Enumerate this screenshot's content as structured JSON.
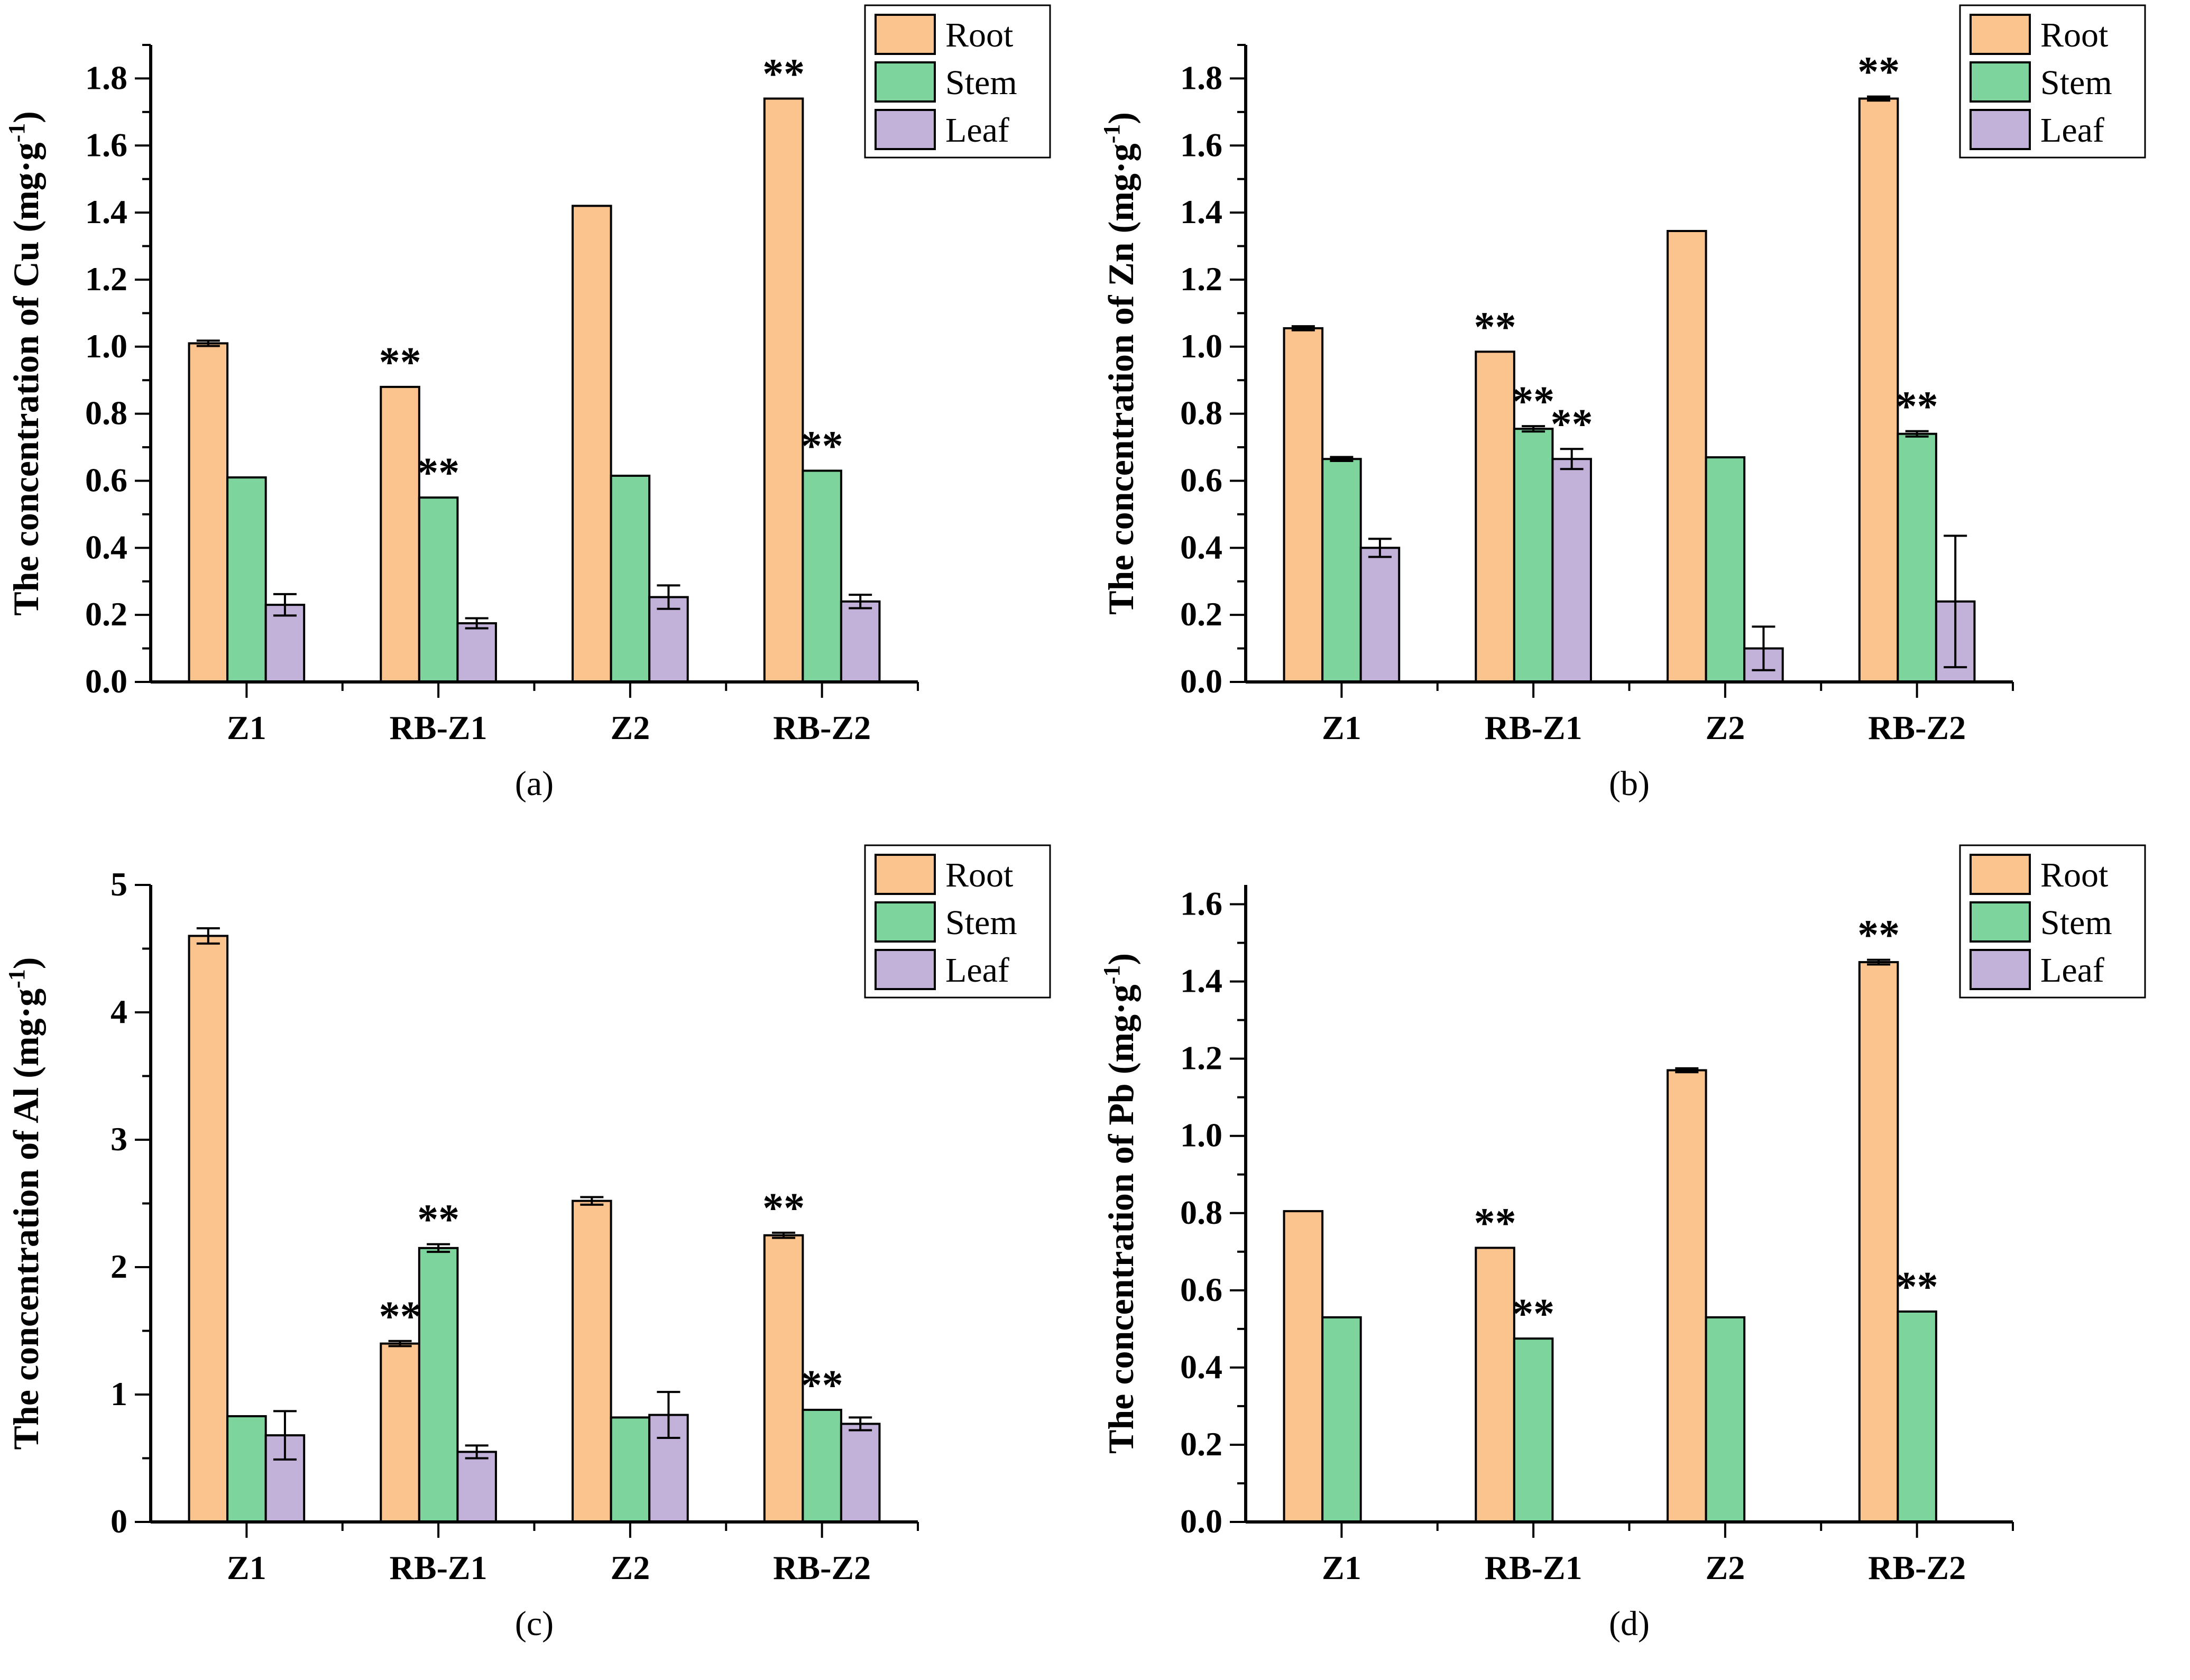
{
  "page": {
    "background": "#ffffff"
  },
  "significance_marker": "**",
  "legend": {
    "position": "top-right",
    "entries": [
      "Root",
      "Stem",
      "Leaf"
    ]
  },
  "colors": {
    "root": "#FBC38D",
    "stem": "#7DD49C",
    "leaf": "#C2B1D8",
    "outline": "#000000",
    "axis": "#000000",
    "error_bar": "#000000",
    "text": "#000000"
  },
  "chart_data": [
    {
      "type": "bar",
      "caption": "(a)",
      "ylabel": {
        "prefix": "The concentration of Cu (mg·g",
        "sup": "-1",
        "suffix": ")"
      },
      "ylim": [
        0,
        1.9
      ],
      "axis_max": 1.9,
      "ytick_values": [
        0.0,
        0.2,
        0.4,
        0.6,
        0.8,
        1.0,
        1.2,
        1.4,
        1.6,
        1.8
      ],
      "ytick_labels": [
        "0.0",
        "0.2",
        "0.4",
        "0.6",
        "0.8",
        "1.0",
        "1.2",
        "1.4",
        "1.6",
        "1.8"
      ],
      "yminor_step": 0.1,
      "grid": false,
      "categories": [
        "Z1",
        "RB-Z1",
        "Z2",
        "RB-Z2"
      ],
      "series": [
        {
          "name": "Root",
          "color": "#FBC38D",
          "values": [
            1.01,
            0.88,
            1.42,
            1.74
          ],
          "errors": [
            0.008,
            0,
            0,
            0
          ],
          "sig": [
            false,
            true,
            false,
            true
          ]
        },
        {
          "name": "Stem",
          "color": "#7DD49C",
          "values": [
            0.61,
            0.55,
            0.615,
            0.63
          ],
          "errors": [
            0,
            0,
            0,
            0
          ],
          "sig": [
            false,
            true,
            false,
            true
          ]
        },
        {
          "name": "Leaf",
          "color": "#C2B1D8",
          "values": [
            0.23,
            0.175,
            0.253,
            0.24
          ],
          "errors": [
            0.032,
            0.015,
            0.035,
            0.02
          ],
          "sig": [
            false,
            false,
            false,
            false
          ]
        }
      ]
    },
    {
      "type": "bar",
      "caption": "(b)",
      "ylabel": {
        "prefix": "The concentration of Zn (mg·g",
        "sup": "-1",
        "suffix": ")"
      },
      "ylim": [
        0,
        1.9
      ],
      "axis_max": 1.9,
      "ytick_values": [
        0.0,
        0.2,
        0.4,
        0.6,
        0.8,
        1.0,
        1.2,
        1.4,
        1.6,
        1.8
      ],
      "ytick_labels": [
        "0.0",
        "0.2",
        "0.4",
        "0.6",
        "0.8",
        "1.0",
        "1.2",
        "1.4",
        "1.6",
        "1.8"
      ],
      "yminor_step": 0.1,
      "grid": false,
      "categories": [
        "Z1",
        "RB-Z1",
        "Z2",
        "RB-Z2"
      ],
      "series": [
        {
          "name": "Root",
          "color": "#FBC38D",
          "values": [
            1.055,
            0.985,
            1.345,
            1.74
          ],
          "errors": [
            0.006,
            0,
            0,
            0.006
          ],
          "sig": [
            false,
            true,
            false,
            true
          ]
        },
        {
          "name": "Stem",
          "color": "#7DD49C",
          "values": [
            0.665,
            0.755,
            0.67,
            0.74
          ],
          "errors": [
            0.006,
            0.008,
            0,
            0.008
          ],
          "sig": [
            false,
            true,
            false,
            true
          ]
        },
        {
          "name": "Leaf",
          "color": "#C2B1D8",
          "values": [
            0.4,
            0.665,
            0.1,
            0.24
          ],
          "errors": [
            0.027,
            0.03,
            0.065,
            0.196
          ],
          "sig": [
            false,
            true,
            false,
            false
          ]
        }
      ]
    },
    {
      "type": "bar",
      "caption": "(c)",
      "ylabel": {
        "prefix": "The concentration of Al (mg·g",
        "sup": "-1",
        "suffix": ")"
      },
      "ylim": [
        0,
        5
      ],
      "axis_max": 5,
      "ytick_values": [
        0,
        1,
        2,
        3,
        4,
        5
      ],
      "ytick_labels": [
        "0",
        "1",
        "2",
        "3",
        "4",
        "5"
      ],
      "yminor_step": 0.5,
      "grid": false,
      "categories": [
        "Z1",
        "RB-Z1",
        "Z2",
        "RB-Z2"
      ],
      "series": [
        {
          "name": "Root",
          "color": "#FBC38D",
          "values": [
            4.6,
            1.4,
            2.52,
            2.25
          ],
          "errors": [
            0.06,
            0.02,
            0.03,
            0.02
          ],
          "sig": [
            false,
            true,
            false,
            true
          ]
        },
        {
          "name": "Stem",
          "color": "#7DD49C",
          "values": [
            0.83,
            2.15,
            0.82,
            0.88
          ],
          "errors": [
            0,
            0.03,
            0,
            0
          ],
          "sig": [
            false,
            true,
            false,
            true
          ]
        },
        {
          "name": "Leaf",
          "color": "#C2B1D8",
          "values": [
            0.68,
            0.55,
            0.84,
            0.77
          ],
          "errors": [
            0.19,
            0.05,
            0.18,
            0.05
          ],
          "sig": [
            false,
            false,
            false,
            false
          ]
        }
      ]
    },
    {
      "type": "bar",
      "caption": "(d)",
      "ylabel": {
        "prefix": "The concentration of Pb (mg·g",
        "sup": "-1",
        "suffix": ")"
      },
      "ylim": [
        0,
        1.65
      ],
      "axis_max": 1.65,
      "ytick_values": [
        0.0,
        0.2,
        0.4,
        0.6,
        0.8,
        1.0,
        1.2,
        1.4,
        1.6
      ],
      "ytick_labels": [
        "0.0",
        "0.2",
        "0.4",
        "0.6",
        "0.8",
        "1.0",
        "1.2",
        "1.4",
        "1.6"
      ],
      "yminor_step": 0.1,
      "grid": false,
      "categories": [
        "Z1",
        "RB-Z1",
        "Z2",
        "RB-Z2"
      ],
      "series": [
        {
          "name": "Root",
          "color": "#FBC38D",
          "values": [
            0.805,
            0.71,
            1.17,
            1.45
          ],
          "errors": [
            0,
            0,
            0.005,
            0.006
          ],
          "sig": [
            false,
            true,
            false,
            true
          ]
        },
        {
          "name": "Stem",
          "color": "#7DD49C",
          "values": [
            0.53,
            0.475,
            0.53,
            0.545
          ],
          "errors": [
            0,
            0,
            0,
            0
          ],
          "sig": [
            false,
            true,
            false,
            true
          ]
        },
        {
          "name": "Leaf",
          "color": "#C2B1D8",
          "values": [
            null,
            null,
            null,
            null
          ],
          "errors": [
            0,
            0,
            0,
            0
          ],
          "sig": [
            false,
            false,
            false,
            false
          ]
        }
      ]
    }
  ]
}
